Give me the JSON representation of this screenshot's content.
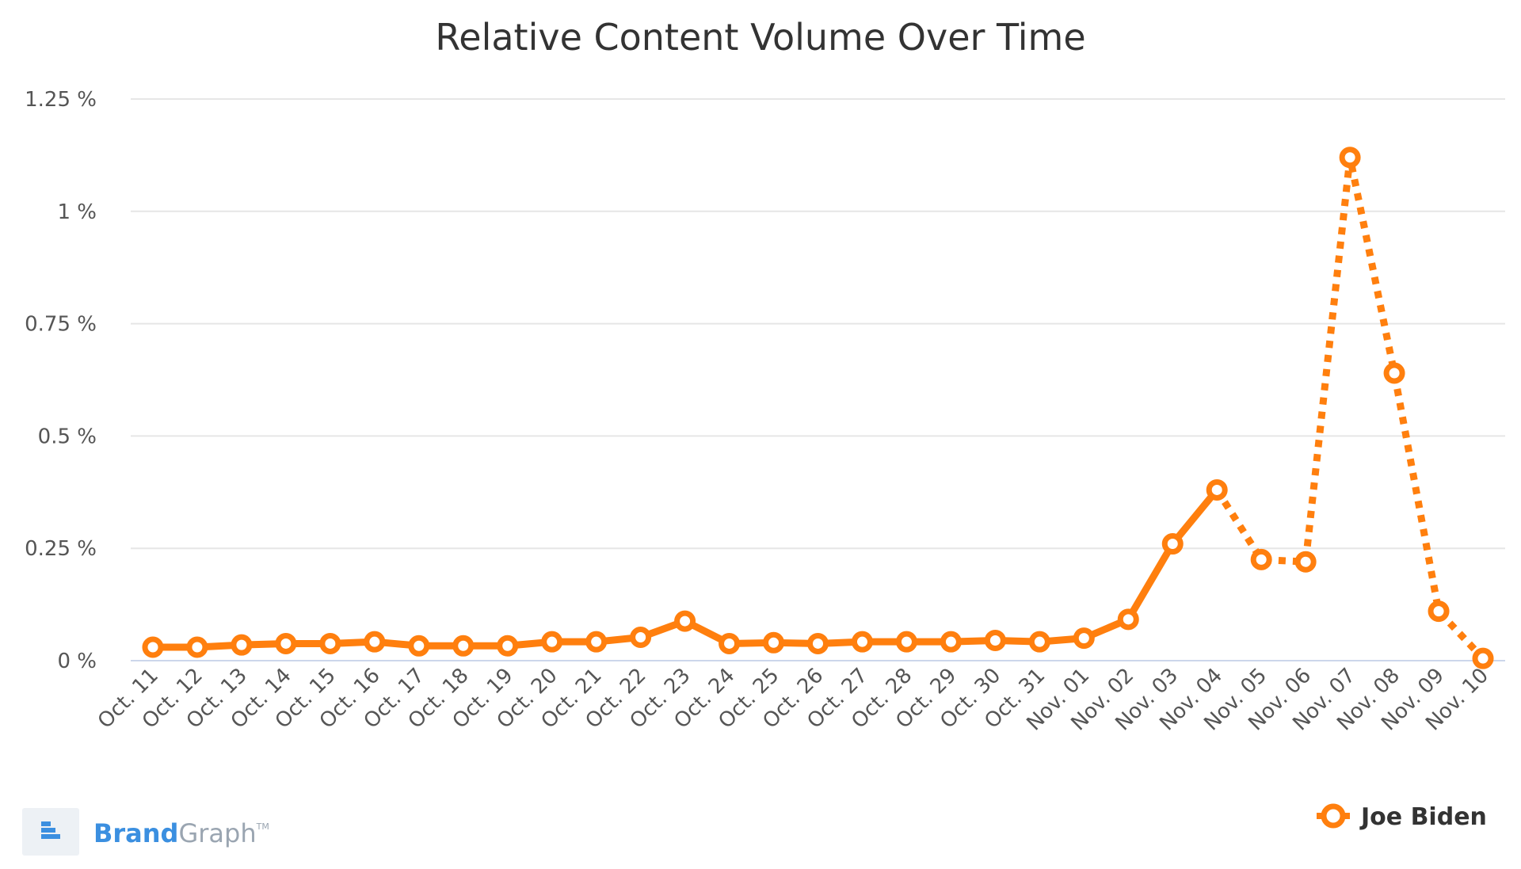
{
  "brand": {
    "name_part1": "Brand",
    "name_part2": "Graph",
    "tm": "TM",
    "color_part1": "#3b8fe0",
    "color_part2": "#9aa5b1"
  },
  "colors": {
    "series": "#ff7f0e",
    "grid": "#e6e6e6",
    "baseline": "#ccd6eb"
  },
  "chart_data": {
    "type": "line",
    "title": "Relative Content Volume Over Time",
    "xlabel": "",
    "ylabel": "",
    "ylim": [
      0,
      1.25
    ],
    "yticks": [
      0,
      0.25,
      0.5,
      0.75,
      1,
      1.25
    ],
    "ytick_labels": [
      "0 %",
      "0.25 %",
      "0.5 %",
      "0.75 %",
      "1 %",
      "1.25 %"
    ],
    "grid": true,
    "legend_position": "bottom-right",
    "categories": [
      "Oct. 11",
      "Oct. 12",
      "Oct. 13",
      "Oct. 14",
      "Oct. 15",
      "Oct. 16",
      "Oct. 17",
      "Oct. 18",
      "Oct. 19",
      "Oct. 20",
      "Oct. 21",
      "Oct. 22",
      "Oct. 23",
      "Oct. 24",
      "Oct. 25",
      "Oct. 26",
      "Oct. 27",
      "Oct. 28",
      "Oct. 29",
      "Oct. 30",
      "Oct. 31",
      "Nov. 01",
      "Nov. 02",
      "Nov. 03",
      "Nov. 04",
      "Nov. 05",
      "Nov. 06",
      "Nov. 07",
      "Nov. 08",
      "Nov. 09",
      "Nov. 10"
    ],
    "series": [
      {
        "name": "Joe Biden",
        "values": [
          0.03,
          0.03,
          0.035,
          0.038,
          0.038,
          0.042,
          0.033,
          0.033,
          0.033,
          0.042,
          0.042,
          0.052,
          0.088,
          0.038,
          0.04,
          0.038,
          0.042,
          0.042,
          0.042,
          0.045,
          0.042,
          0.05,
          0.092,
          0.26,
          0.38,
          0.225,
          0.22,
          1.12,
          0.64,
          0.11,
          0.005
        ],
        "dashed_from_index": 24
      }
    ]
  }
}
